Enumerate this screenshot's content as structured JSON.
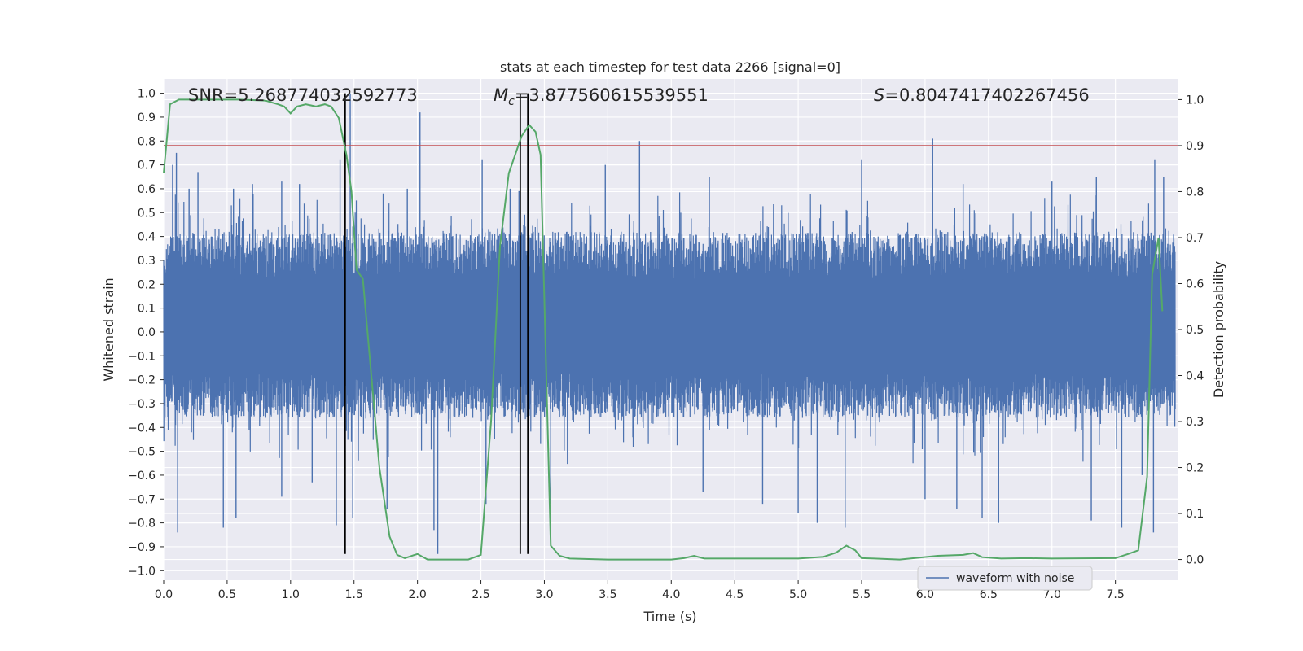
{
  "chart_data": {
    "type": "line",
    "title": "stats at each timestep for test data 2266 [signal=0]",
    "xlabel": "Time (s)",
    "ylabel": "Whitened strain",
    "y2label": "Detection probability",
    "xlim": [
      0.0,
      7.99
    ],
    "ylim": [
      -1.04,
      1.06
    ],
    "y2lim": [
      -0.045,
      1.045
    ],
    "x_ticks": [
      0.0,
      0.5,
      1.0,
      1.5,
      2.0,
      2.5,
      3.0,
      3.5,
      4.0,
      4.5,
      5.0,
      5.5,
      6.0,
      6.5,
      7.0,
      7.5
    ],
    "x_tick_labels": [
      "0.0",
      "0.5",
      "1.0",
      "1.5",
      "2.0",
      "2.5",
      "3.0",
      "3.5",
      "4.0",
      "4.5",
      "5.0",
      "5.5",
      "6.0",
      "6.5",
      "7.0",
      "7.5"
    ],
    "y_ticks": [
      1.0,
      0.9,
      0.8,
      0.7,
      0.6,
      0.5,
      0.4,
      0.3,
      0.2,
      0.1,
      0.0,
      -0.1,
      -0.2,
      -0.3,
      -0.4,
      -0.5,
      -0.6,
      -0.7,
      -0.8,
      -0.9,
      -1.0
    ],
    "y_tick_labels": [
      "1.0",
      "0.9",
      "0.8",
      "0.7",
      "0.6",
      "0.5",
      "0.4",
      "0.3",
      "0.2",
      "0.1",
      "0.0",
      "−0.1",
      "−0.2",
      "−0.3",
      "−0.4",
      "−0.5",
      "−0.6",
      "−0.7",
      "−0.8",
      "−0.9",
      "−1.0"
    ],
    "y2_ticks": [
      1.0,
      0.9,
      0.8,
      0.7,
      0.6,
      0.5,
      0.4,
      0.3,
      0.2,
      0.1,
      0.0
    ],
    "y2_tick_labels": [
      "1.0",
      "0.9",
      "0.8",
      "0.7",
      "0.6",
      "0.5",
      "0.4",
      "0.3",
      "0.2",
      "0.1",
      "0.0"
    ],
    "grid": true,
    "legend": {
      "location": "lower-right",
      "entries": [
        "waveform with noise"
      ]
    },
    "annotations": {
      "snr": "SNR=5.268774032592773",
      "mc_symbol": "M",
      "mc_sub": "c",
      "mc_value": "=3.877560615539551",
      "s_symbol": "S",
      "s_value": "=0.8047417402267456"
    },
    "series": [
      {
        "name": "waveform with noise",
        "axis": "left",
        "color": "#4c72b0",
        "style": "dense-noise",
        "envelope": {
          "upper_typical": 0.42,
          "lower_typical": -0.36,
          "core_upper": 0.22,
          "core_lower": -0.17
        },
        "peaks_up": [
          [
            0.07,
            0.7
          ],
          [
            0.1,
            0.75
          ],
          [
            0.2,
            0.6
          ],
          [
            0.27,
            0.67
          ],
          [
            0.55,
            0.6
          ],
          [
            0.6,
            0.56
          ],
          [
            0.7,
            0.62
          ],
          [
            0.93,
            0.63
          ],
          [
            1.07,
            0.62
          ],
          [
            1.39,
            0.72
          ],
          [
            1.47,
            1.0
          ],
          [
            1.73,
            0.58
          ],
          [
            1.92,
            0.6
          ],
          [
            2.02,
            0.92
          ],
          [
            2.51,
            0.72
          ],
          [
            2.73,
            0.6
          ],
          [
            2.8,
            0.59
          ],
          [
            3.48,
            0.7
          ],
          [
            3.75,
            0.8
          ],
          [
            4.3,
            0.65
          ],
          [
            5.5,
            0.72
          ],
          [
            6.06,
            0.81
          ],
          [
            6.3,
            0.62
          ],
          [
            7.0,
            0.63
          ],
          [
            7.35,
            0.65
          ],
          [
            7.81,
            0.72
          ],
          [
            7.88,
            0.65
          ]
        ],
        "peaks_down": [
          [
            0.11,
            -0.84
          ],
          [
            0.47,
            -0.82
          ],
          [
            0.57,
            -0.78
          ],
          [
            0.93,
            -0.69
          ],
          [
            1.17,
            -0.63
          ],
          [
            1.36,
            -0.81
          ],
          [
            1.49,
            -0.78
          ],
          [
            1.76,
            -0.74
          ],
          [
            2.13,
            -0.83
          ],
          [
            2.16,
            -0.93
          ],
          [
            2.54,
            -0.72
          ],
          [
            3.05,
            -0.72
          ],
          [
            4.25,
            -0.67
          ],
          [
            4.72,
            -0.72
          ],
          [
            5.0,
            -0.76
          ],
          [
            5.15,
            -0.8
          ],
          [
            5.37,
            -0.82
          ],
          [
            6.0,
            -0.7
          ],
          [
            6.25,
            -0.74
          ],
          [
            6.45,
            -0.78
          ],
          [
            6.58,
            -0.8
          ],
          [
            7.31,
            -0.79
          ],
          [
            7.55,
            -0.82
          ],
          [
            7.71,
            -0.6
          ],
          [
            7.8,
            -0.84
          ]
        ]
      },
      {
        "name": "detection probability",
        "axis": "right",
        "color": "#55a868",
        "x": [
          0.0,
          0.05,
          0.12,
          0.2,
          0.4,
          0.6,
          0.8,
          0.9,
          0.95,
          1.0,
          1.05,
          1.12,
          1.2,
          1.27,
          1.32,
          1.38,
          1.44,
          1.48,
          1.52,
          1.57,
          1.63,
          1.7,
          1.78,
          1.84,
          1.9,
          2.0,
          2.08,
          2.15,
          2.25,
          2.4,
          2.5,
          2.58,
          2.65,
          2.72,
          2.82,
          2.88,
          2.93,
          2.97,
          3.05,
          3.12,
          3.2,
          3.5,
          4.0,
          4.1,
          4.18,
          4.26,
          4.5,
          5.0,
          5.2,
          5.3,
          5.38,
          5.45,
          5.5,
          5.6,
          5.8,
          6.1,
          6.3,
          6.38,
          6.45,
          6.6,
          6.8,
          7.0,
          7.5,
          7.6,
          7.68,
          7.75,
          7.79,
          7.84,
          7.87
        ],
        "values": [
          0.84,
          0.99,
          1.0,
          1.0,
          1.0,
          1.0,
          0.998,
          0.99,
          0.985,
          0.97,
          0.985,
          0.99,
          0.985,
          0.99,
          0.985,
          0.96,
          0.88,
          0.8,
          0.63,
          0.61,
          0.42,
          0.2,
          0.05,
          0.01,
          0.003,
          0.012,
          0.0,
          0.0,
          0.0,
          0.0,
          0.01,
          0.3,
          0.68,
          0.84,
          0.92,
          0.945,
          0.93,
          0.88,
          0.03,
          0.008,
          0.002,
          0.0,
          0.0,
          0.003,
          0.008,
          0.002,
          0.002,
          0.002,
          0.006,
          0.015,
          0.03,
          0.02,
          0.003,
          0.002,
          0.0,
          0.008,
          0.01,
          0.014,
          0.005,
          0.002,
          0.003,
          0.002,
          0.003,
          0.012,
          0.02,
          0.18,
          0.62,
          0.7,
          0.54
        ]
      },
      {
        "name": "threshold",
        "axis": "right",
        "color": "#c44e52",
        "values": [
          0.9
        ]
      }
    ],
    "vlines": {
      "color": "#000000",
      "x": [
        1.43,
        2.81,
        2.87
      ],
      "ranges": [
        [
          -0.93,
          1.0
        ],
        [
          -0.93,
          1.0
        ],
        [
          -0.93,
          1.0
        ]
      ]
    }
  }
}
